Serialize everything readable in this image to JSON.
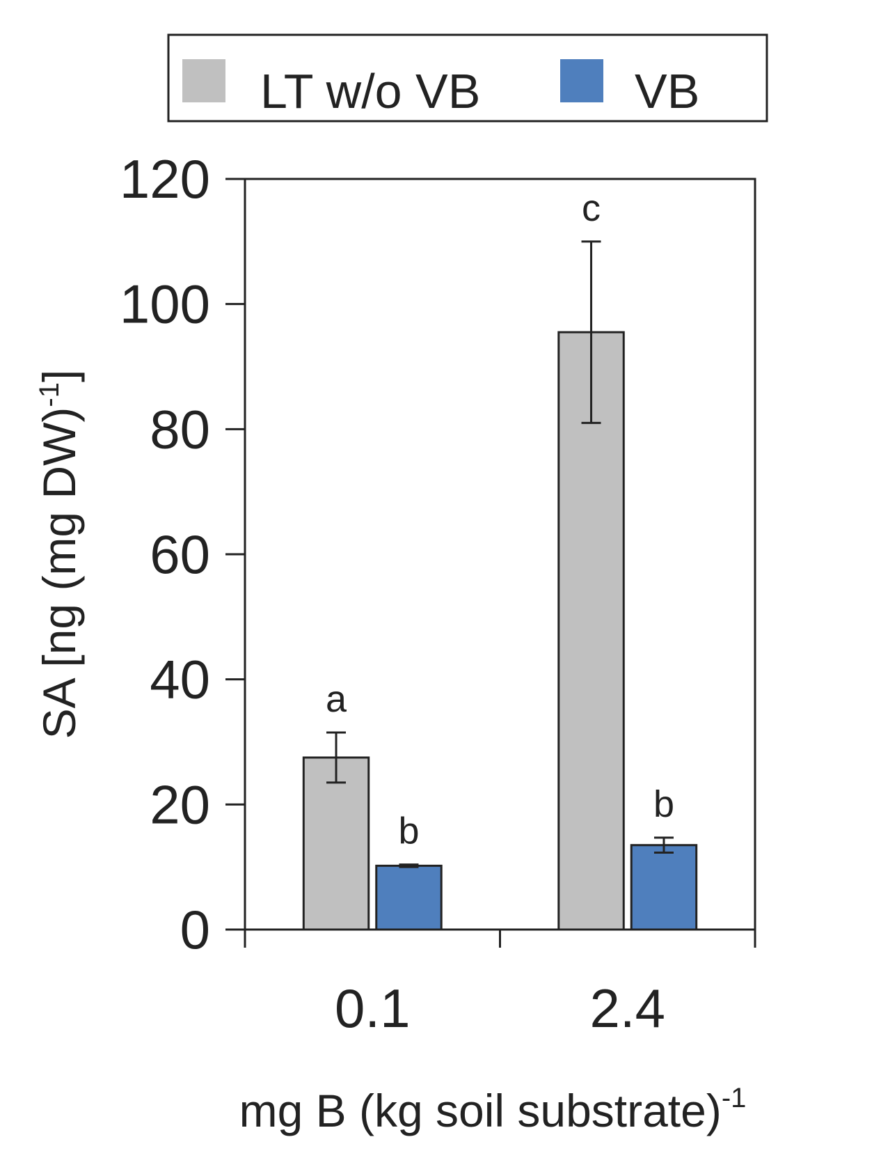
{
  "chart_data": {
    "type": "bar",
    "categories": [
      "0.1",
      "2.4"
    ],
    "series": [
      {
        "name": "LT w/o VB",
        "color": "#c0c0c0",
        "values": [
          27.5,
          95.5
        ],
        "errors": [
          4.0,
          14.5
        ],
        "sig_labels": [
          "a",
          "c"
        ]
      },
      {
        "name": "VB",
        "color": "#4f7fbd",
        "values": [
          10.2,
          13.5
        ],
        "errors": [
          0.2,
          1.2
        ],
        "sig_labels": [
          "b",
          "b"
        ]
      }
    ],
    "ylim": [
      0,
      120
    ],
    "yticks": [
      0,
      20,
      40,
      60,
      80,
      100,
      120
    ],
    "ylabel": "SA [ng (mg DW)",
    "ylabel_sup": "-1",
    "ylabel_end": "]",
    "xlabel": "mg B (kg soil substrate)",
    "xlabel_sup": "-1",
    "legend_position": "top",
    "grid": false
  }
}
